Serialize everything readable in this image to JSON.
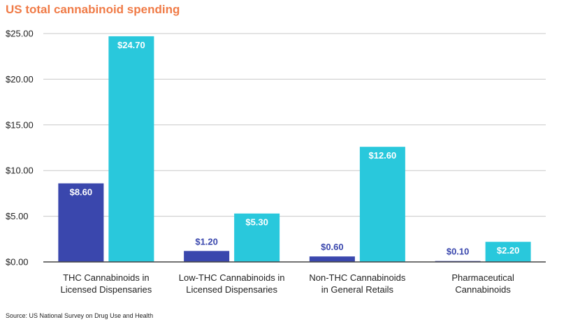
{
  "chart_data": {
    "type": "bar",
    "title": "US total cannabinoid spending",
    "source": "Source: US National Survey on Drug Use and Health",
    "xlabel": "",
    "ylabel": "",
    "ylim": [
      0,
      25
    ],
    "yticks": [
      "$0.00",
      "$5.00",
      "$10.00",
      "$15.00",
      "$20.00",
      "$25.00"
    ],
    "categories": [
      [
        "THC Cannabinoids in",
        "Licensed Dispensaries"
      ],
      [
        "Low-THC Cannabinoids in",
        "Licensed Dispensaries"
      ],
      [
        "Non-THC Cannabinoids",
        "in General Retails"
      ],
      [
        "Pharmaceutical",
        "Cannabinoids"
      ]
    ],
    "series": [
      {
        "values": [
          8.6,
          1.2,
          0.6,
          0.1
        ],
        "labels": [
          "$8.60",
          "$1.20",
          "$0.60",
          "$0.10"
        ],
        "color": "#3a47ad"
      },
      {
        "values": [
          24.7,
          5.3,
          12.6,
          2.2
        ],
        "labels": [
          "$24.70",
          "$5.30",
          "$12.60",
          "$2.20"
        ],
        "color": "#29c8dc"
      }
    ],
    "grid": true,
    "colors": {
      "title": "#f07b47",
      "grid": "#c8c8c8",
      "axis": "#444444"
    }
  }
}
